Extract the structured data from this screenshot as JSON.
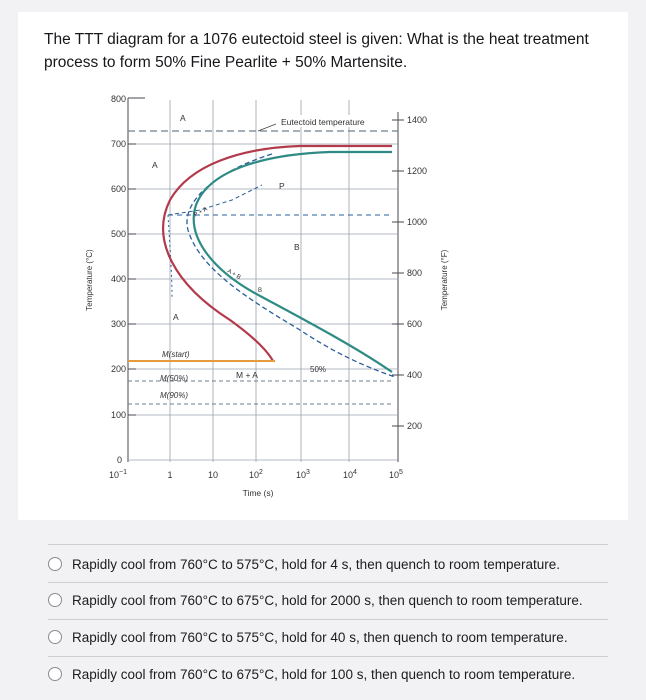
{
  "question": {
    "line1": "The TTT diagram for a 1076 eutectoid steel is given: What is the heat treatment",
    "line2": "process to form 50% Fine Pearlite + 50% Martensite."
  },
  "diagram": {
    "axis_left_label": "Temperature (°C)",
    "axis_right_label": "Temperature (°F)",
    "axis_bottom_label": "Time (s)",
    "celsius_ticks": [
      "800",
      "700",
      "600",
      "500",
      "400",
      "300",
      "200",
      "100",
      "0"
    ],
    "fahrenheit_ticks": [
      "1400",
      "1200",
      "1000",
      "800",
      "600",
      "400",
      "200"
    ],
    "time_ticks": {
      "t1": "10",
      "t1_sup": "−1",
      "t2": "1",
      "t3": "10",
      "t4": "10",
      "t4_sup": "2",
      "t5": "10",
      "t5_sup": "3",
      "t6": "10",
      "t6_sup": "4",
      "t7": "10",
      "t7_sup": "5"
    },
    "labels": {
      "eutectoid": "Eutectoid temperature",
      "a_top": "A",
      "a_mid": "A",
      "a_low": "A",
      "p": "P",
      "b": "B",
      "pa": "P + A",
      "ab1": "A + B",
      "ab2": "B",
      "m_start": "M(start)",
      "m50": "M(50%)",
      "m90": "M(90%)",
      "ma": "M + A",
      "pct50": "50%"
    },
    "colors": {
      "start_curve": "#b23a4a",
      "finish_curve": "#2e8b84",
      "mstart_line": "#e59a3c"
    }
  },
  "options": [
    {
      "text": "Rapidly cool from 760°C to 575°C, hold for 4 s, then quench to room temperature."
    },
    {
      "text": "Rapidly cool from 760°C to 675°C, hold for 2000 s, then quench to room temperature."
    },
    {
      "text": "Rapidly cool from 760°C to 575°C, hold for 40 s, then quench to room temperature."
    },
    {
      "text": "Rapidly cool from 760°C to 675°C, hold for 100 s, then quench to room temperature."
    }
  ]
}
